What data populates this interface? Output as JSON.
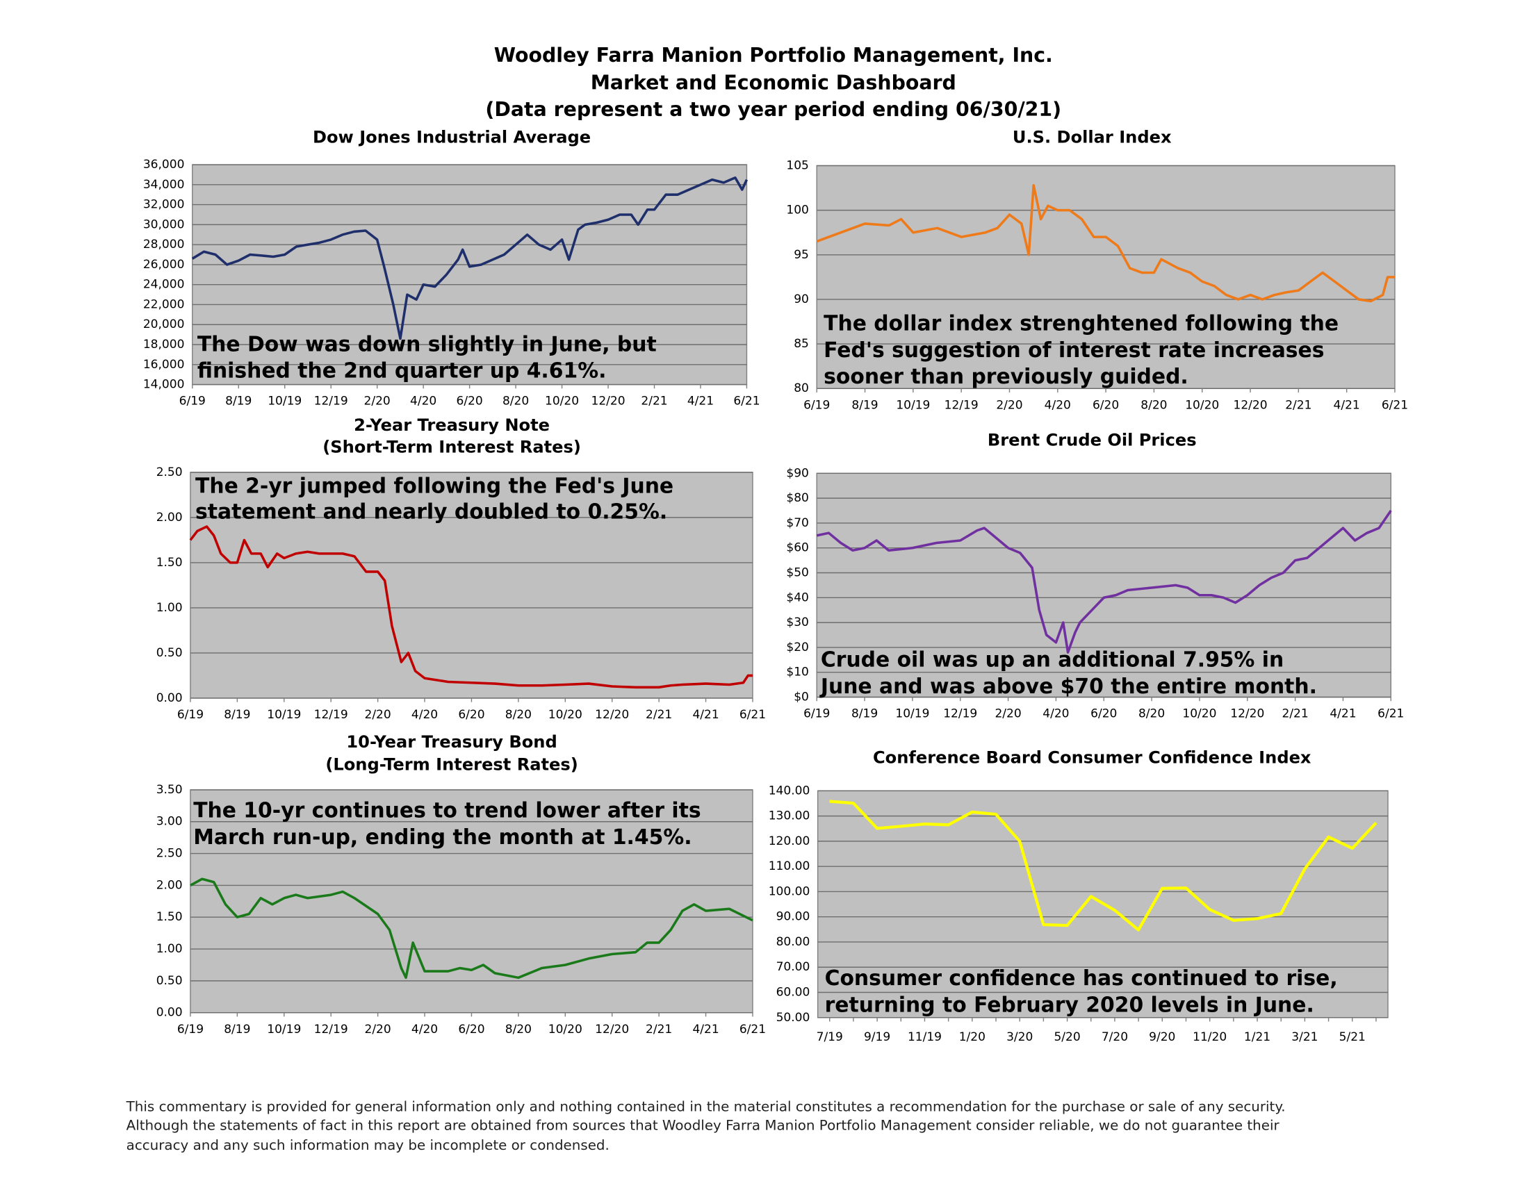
{
  "header": {
    "lines": [
      "Woodley Farra Manion Portfolio Management, Inc.",
      "Market and Economic Dashboard",
      "(Data represent a two year period ending 06/30/21)"
    ]
  },
  "chart_data": [
    {
      "type": "line",
      "title": "Dow Jones Industrial Average",
      "annotation": [
        "The Dow was down slightly in June, but",
        "finished the 2nd quarter up 4.61%."
      ],
      "color": "#1f2f6b",
      "background": "#c0c0c0",
      "grid": true,
      "x": [
        0,
        0.5,
        1,
        1.5,
        2,
        2.5,
        3,
        3.5,
        4,
        4.5,
        5,
        5.5,
        6,
        6.5,
        7,
        7.5,
        8,
        8.3,
        8.7,
        9,
        9.3,
        9.7,
        10,
        10.5,
        11,
        11.5,
        11.7,
        12,
        12.5,
        13,
        13.5,
        14,
        14.5,
        15,
        15.5,
        16,
        16.3,
        16.7,
        17,
        17.5,
        18,
        18.5,
        19,
        19.3,
        19.7,
        20,
        20.5,
        21,
        21.5,
        22,
        22.5,
        23,
        23.5,
        23.8,
        24
      ],
      "values": [
        26600,
        27300,
        27000,
        26000,
        26400,
        27000,
        26900,
        26800,
        27000,
        27800,
        28000,
        28200,
        28500,
        29000,
        29300,
        29400,
        28500,
        25800,
        22000,
        18600,
        23000,
        22500,
        24000,
        23800,
        25000,
        26500,
        27500,
        25800,
        26000,
        26500,
        27000,
        28000,
        29000,
        28000,
        27500,
        28500,
        26500,
        29500,
        30000,
        30200,
        30500,
        31000,
        31000,
        30000,
        31500,
        31500,
        33000,
        33000,
        33500,
        34000,
        34500,
        34200,
        34700,
        33500,
        34500
      ],
      "xlim": [
        0,
        24
      ],
      "xticks": [
        {
          "value": 0,
          "label": "6/19"
        },
        {
          "value": 2,
          "label": "8/19"
        },
        {
          "value": 4,
          "label": "10/19"
        },
        {
          "value": 6,
          "label": "12/19"
        },
        {
          "value": 8,
          "label": "2/20"
        },
        {
          "value": 10,
          "label": "4/20"
        },
        {
          "value": 12,
          "label": "6/20"
        },
        {
          "value": 14,
          "label": "8/20"
        },
        {
          "value": 16,
          "label": "10/20"
        },
        {
          "value": 18,
          "label": "12/20"
        },
        {
          "value": 20,
          "label": "2/21"
        },
        {
          "value": 22,
          "label": "4/21"
        },
        {
          "value": 24,
          "label": "6/21"
        }
      ],
      "ylim": [
        14000,
        36000
      ],
      "yticks": [
        {
          "value": 14000,
          "label": "14,000"
        },
        {
          "value": 16000,
          "label": "16,000"
        },
        {
          "value": 18000,
          "label": "18,000"
        },
        {
          "value": 20000,
          "label": "20,000"
        },
        {
          "value": 22000,
          "label": "22,000"
        },
        {
          "value": 24000,
          "label": "24,000"
        },
        {
          "value": 26000,
          "label": "26,000"
        },
        {
          "value": 28000,
          "label": "28,000"
        },
        {
          "value": 30000,
          "label": "30,000"
        },
        {
          "value": 32000,
          "label": "32,000"
        },
        {
          "value": 34000,
          "label": "34,000"
        },
        {
          "value": 36000,
          "label": "36,000"
        }
      ]
    },
    {
      "type": "line",
      "title": "U.S. Dollar Index",
      "annotation": [
        "The dollar index strenghtened following the",
        "Fed's suggestion of interest rate increases",
        "sooner than previously guided."
      ],
      "color": "#ee7a1a",
      "background": "#c0c0c0",
      "grid": true,
      "x": [
        0,
        0.5,
        1,
        1.5,
        2,
        3,
        3.5,
        4,
        5,
        5.5,
        6,
        7,
        7.5,
        8,
        8.5,
        8.8,
        9,
        9.3,
        9.6,
        10,
        10.5,
        11,
        11.5,
        12,
        12.5,
        13,
        13.5,
        14,
        14.3,
        15,
        15.5,
        16,
        16.5,
        17,
        17.5,
        18,
        18.5,
        19,
        19.5,
        20,
        20.5,
        21,
        21.5,
        22,
        22.5,
        23,
        23.5,
        23.7,
        24
      ],
      "values": [
        96.5,
        97,
        97.5,
        98,
        98.5,
        98.3,
        99,
        97.5,
        98,
        97.5,
        97,
        97.5,
        98,
        99.5,
        98.5,
        95,
        102.8,
        99,
        100.5,
        100,
        100,
        99,
        97,
        97,
        96,
        93.5,
        93,
        93,
        94.5,
        93.5,
        93,
        92,
        91.5,
        90.5,
        90,
        90.5,
        90,
        90.5,
        90.8,
        91,
        92,
        93,
        92,
        91,
        90,
        89.8,
        90.5,
        92.5,
        92.5
      ],
      "xlim": [
        0,
        24
      ],
      "xticks": [
        {
          "value": 0,
          "label": "6/19"
        },
        {
          "value": 2,
          "label": "8/19"
        },
        {
          "value": 4,
          "label": "10/19"
        },
        {
          "value": 6,
          "label": "12/19"
        },
        {
          "value": 8,
          "label": "2/20"
        },
        {
          "value": 10,
          "label": "4/20"
        },
        {
          "value": 12,
          "label": "6/20"
        },
        {
          "value": 14,
          "label": "8/20"
        },
        {
          "value": 16,
          "label": "10/20"
        },
        {
          "value": 18,
          "label": "12/20"
        },
        {
          "value": 20,
          "label": "2/21"
        },
        {
          "value": 22,
          "label": "4/21"
        },
        {
          "value": 24,
          "label": "6/21"
        }
      ],
      "ylim": [
        80,
        105
      ],
      "yticks": [
        80,
        85,
        90,
        95,
        100,
        105
      ]
    },
    {
      "type": "line",
      "title": "2-Year Treasury Note",
      "subtitle": "(Short-Term Interest Rates)",
      "annotation": [
        "The 2-yr jumped following the Fed's June",
        "statement and nearly doubled to 0.25%."
      ],
      "color": "#c00000",
      "background": "#c0c0c0",
      "grid": true,
      "x": [
        0,
        0.3,
        0.7,
        1,
        1.3,
        1.7,
        2,
        2.3,
        2.6,
        3,
        3.3,
        3.7,
        4,
        4.5,
        5,
        5.5,
        6,
        6.5,
        7,
        7.5,
        8,
        8.3,
        8.6,
        9,
        9.3,
        9.6,
        10,
        11,
        12,
        13,
        14,
        15,
        16,
        17,
        18,
        19,
        20,
        20.5,
        21,
        22,
        23,
        23.6,
        23.8,
        24
      ],
      "values": [
        1.75,
        1.85,
        1.9,
        1.8,
        1.6,
        1.5,
        1.5,
        1.75,
        1.6,
        1.6,
        1.45,
        1.6,
        1.55,
        1.6,
        1.62,
        1.6,
        1.6,
        1.6,
        1.57,
        1.4,
        1.4,
        1.3,
        0.8,
        0.4,
        0.5,
        0.3,
        0.22,
        0.18,
        0.17,
        0.16,
        0.14,
        0.14,
        0.15,
        0.16,
        0.13,
        0.12,
        0.12,
        0.14,
        0.15,
        0.16,
        0.15,
        0.17,
        0.25,
        0.25
      ],
      "xlim": [
        0,
        24
      ],
      "xticks": [
        {
          "value": 0,
          "label": "6/19"
        },
        {
          "value": 2,
          "label": "8/19"
        },
        {
          "value": 4,
          "label": "10/19"
        },
        {
          "value": 6,
          "label": "12/19"
        },
        {
          "value": 8,
          "label": "2/20"
        },
        {
          "value": 10,
          "label": "4/20"
        },
        {
          "value": 12,
          "label": "6/20"
        },
        {
          "value": 14,
          "label": "8/20"
        },
        {
          "value": 16,
          "label": "10/20"
        },
        {
          "value": 18,
          "label": "12/20"
        },
        {
          "value": 20,
          "label": "2/21"
        },
        {
          "value": 22,
          "label": "4/21"
        },
        {
          "value": 24,
          "label": "6/21"
        }
      ],
      "ylim": [
        0,
        2.5
      ],
      "yticks": [
        {
          "value": 0,
          "label": "0.00"
        },
        {
          "value": 0.5,
          "label": "0.50"
        },
        {
          "value": 1,
          "label": "1.00"
        },
        {
          "value": 1.5,
          "label": "1.50"
        },
        {
          "value": 2,
          "label": "2.00"
        },
        {
          "value": 2.5,
          "label": "2.50"
        }
      ]
    },
    {
      "type": "line",
      "title": "Brent Crude Oil Prices",
      "annotation": [
        "Crude oil was up an additional 7.95% in",
        "June and was above $70 the entire month."
      ],
      "color": "#7030a0",
      "background": "#c0c0c0",
      "grid": true,
      "x": [
        0,
        0.5,
        1,
        1.5,
        2,
        2.5,
        3,
        4,
        5,
        6,
        6.7,
        7,
        7.5,
        8,
        8.5,
        9,
        9.3,
        9.6,
        10,
        10.3,
        10.5,
        10.8,
        11,
        11.5,
        12,
        12.5,
        13,
        14,
        15,
        15.5,
        16,
        16.5,
        17,
        17.5,
        18,
        18.5,
        19,
        19.5,
        20,
        20.5,
        21,
        21.5,
        22,
        22.5,
        23,
        23.5,
        24
      ],
      "values": [
        65,
        66,
        62,
        59,
        60,
        63,
        59,
        60,
        62,
        63,
        67,
        68,
        64,
        60,
        58,
        52,
        35,
        25,
        22,
        30,
        18,
        26,
        30,
        35,
        40,
        41,
        43,
        44,
        45,
        44,
        41,
        41,
        40,
        38,
        41,
        45,
        48,
        50,
        55,
        56,
        60,
        64,
        68,
        63,
        66,
        68,
        75
      ],
      "xlim": [
        0,
        24
      ],
      "xticks": [
        {
          "value": 0,
          "label": "6/19"
        },
        {
          "value": 2,
          "label": "8/19"
        },
        {
          "value": 4,
          "label": "10/19"
        },
        {
          "value": 6,
          "label": "12/19"
        },
        {
          "value": 8,
          "label": "2/20"
        },
        {
          "value": 10,
          "label": "4/20"
        },
        {
          "value": 12,
          "label": "6/20"
        },
        {
          "value": 14,
          "label": "8/20"
        },
        {
          "value": 16,
          "label": "10/20"
        },
        {
          "value": 18,
          "label": "12/20"
        },
        {
          "value": 20,
          "label": "2/21"
        },
        {
          "value": 22,
          "label": "4/21"
        },
        {
          "value": 24,
          "label": "6/21"
        }
      ],
      "ylim": [
        0,
        90
      ],
      "yticks": [
        {
          "value": 0,
          "label": "$0"
        },
        {
          "value": 10,
          "label": "$10"
        },
        {
          "value": 20,
          "label": "$20"
        },
        {
          "value": 30,
          "label": "$30"
        },
        {
          "value": 40,
          "label": "$40"
        },
        {
          "value": 50,
          "label": "$50"
        },
        {
          "value": 60,
          "label": "$60"
        },
        {
          "value": 70,
          "label": "$70"
        },
        {
          "value": 80,
          "label": "$80"
        },
        {
          "value": 90,
          "label": "$90"
        }
      ]
    },
    {
      "type": "line",
      "title": "10-Year Treasury Bond",
      "subtitle": "(Long-Term Interest Rates)",
      "annotation": [
        "The 10-yr continues to trend lower after its",
        "March run-up, ending the month at 1.45%."
      ],
      "color": "#1a7a1a",
      "background": "#c0c0c0",
      "grid": true,
      "x": [
        0,
        0.5,
        1,
        1.5,
        2,
        2.5,
        3,
        3.5,
        4,
        4.5,
        5,
        6,
        6.5,
        7,
        8,
        8.5,
        9,
        9.2,
        9.5,
        10,
        11,
        11.5,
        12,
        12.5,
        13,
        14,
        15,
        16,
        17,
        18,
        19,
        19.5,
        20,
        20.5,
        21,
        21.5,
        22,
        23,
        24
      ],
      "values": [
        2.0,
        2.1,
        2.05,
        1.7,
        1.5,
        1.55,
        1.8,
        1.7,
        1.8,
        1.85,
        1.8,
        1.85,
        1.9,
        1.8,
        1.55,
        1.3,
        0.7,
        0.55,
        1.1,
        0.65,
        0.65,
        0.7,
        0.67,
        0.75,
        0.62,
        0.55,
        0.7,
        0.75,
        0.85,
        0.92,
        0.95,
        1.1,
        1.1,
        1.3,
        1.6,
        1.7,
        1.6,
        1.63,
        1.45
      ],
      "xlim": [
        0,
        24
      ],
      "xticks": [
        {
          "value": 0,
          "label": "6/19"
        },
        {
          "value": 2,
          "label": "8/19"
        },
        {
          "value": 4,
          "label": "10/19"
        },
        {
          "value": 6,
          "label": "12/19"
        },
        {
          "value": 8,
          "label": "2/20"
        },
        {
          "value": 10,
          "label": "4/20"
        },
        {
          "value": 12,
          "label": "6/20"
        },
        {
          "value": 14,
          "label": "8/20"
        },
        {
          "value": 16,
          "label": "10/20"
        },
        {
          "value": 18,
          "label": "12/20"
        },
        {
          "value": 20,
          "label": "2/21"
        },
        {
          "value": 22,
          "label": "4/21"
        },
        {
          "value": 24,
          "label": "6/21"
        }
      ],
      "ylim": [
        0,
        3.5
      ],
      "yticks": [
        {
          "value": 0,
          "label": "0.00"
        },
        {
          "value": 0.5,
          "label": "0.50"
        },
        {
          "value": 1,
          "label": "1.00"
        },
        {
          "value": 1.5,
          "label": "1.50"
        },
        {
          "value": 2,
          "label": "2.00"
        },
        {
          "value": 2.5,
          "label": "2.50"
        },
        {
          "value": 3,
          "label": "3.00"
        },
        {
          "value": 3.5,
          "label": "3.50"
        }
      ]
    },
    {
      "type": "line",
      "title": "Conference Board Consumer Confidence Index",
      "annotation": [
        "Consumer confidence has continued to rise,",
        "returning to February 2020 levels in June."
      ],
      "color": "#ffff00",
      "background": "#c0c0c0",
      "grid": true,
      "categories": [
        "7/19",
        null,
        "9/19",
        null,
        "11/19",
        null,
        "1/20",
        null,
        "3/20",
        null,
        "5/20",
        null,
        "7/20",
        null,
        "9/20",
        null,
        "11/20",
        null,
        "1/21",
        null,
        "3/21",
        null,
        "5/21",
        null
      ],
      "values": [
        135.8,
        135.1,
        125.1,
        125.9,
        126.8,
        126.5,
        131.6,
        130.7,
        120,
        86.9,
        86.6,
        98.1,
        92.6,
        84.8,
        101.3,
        101.4,
        92.9,
        88.6,
        89.3,
        91.3,
        109,
        121.7,
        117.2,
        127.3
      ],
      "ylim": [
        50,
        140
      ],
      "yticks": [
        {
          "value": 50,
          "label": "50.00"
        },
        {
          "value": 60,
          "label": "60.00"
        },
        {
          "value": 70,
          "label": "70.00"
        },
        {
          "value": 80,
          "label": "80.00"
        },
        {
          "value": 90,
          "label": "90.00"
        },
        {
          "value": 100,
          "label": "100.00"
        },
        {
          "value": 110,
          "label": "110.00"
        },
        {
          "value": 120,
          "label": "120.00"
        },
        {
          "value": 130,
          "label": "130.00"
        },
        {
          "value": 140,
          "label": "140.00"
        }
      ]
    }
  ],
  "footer": {
    "lines": [
      "This commentary is provided for general information only and nothing contained in the material constitutes a recommendation for the purchase or sale of any security.",
      "Although the statements of fact in this report are obtained from sources that Woodley Farra Manion Portfolio Management consider reliable, we do not guarantee their",
      "accuracy and any such information may be incomplete or condensed."
    ]
  }
}
